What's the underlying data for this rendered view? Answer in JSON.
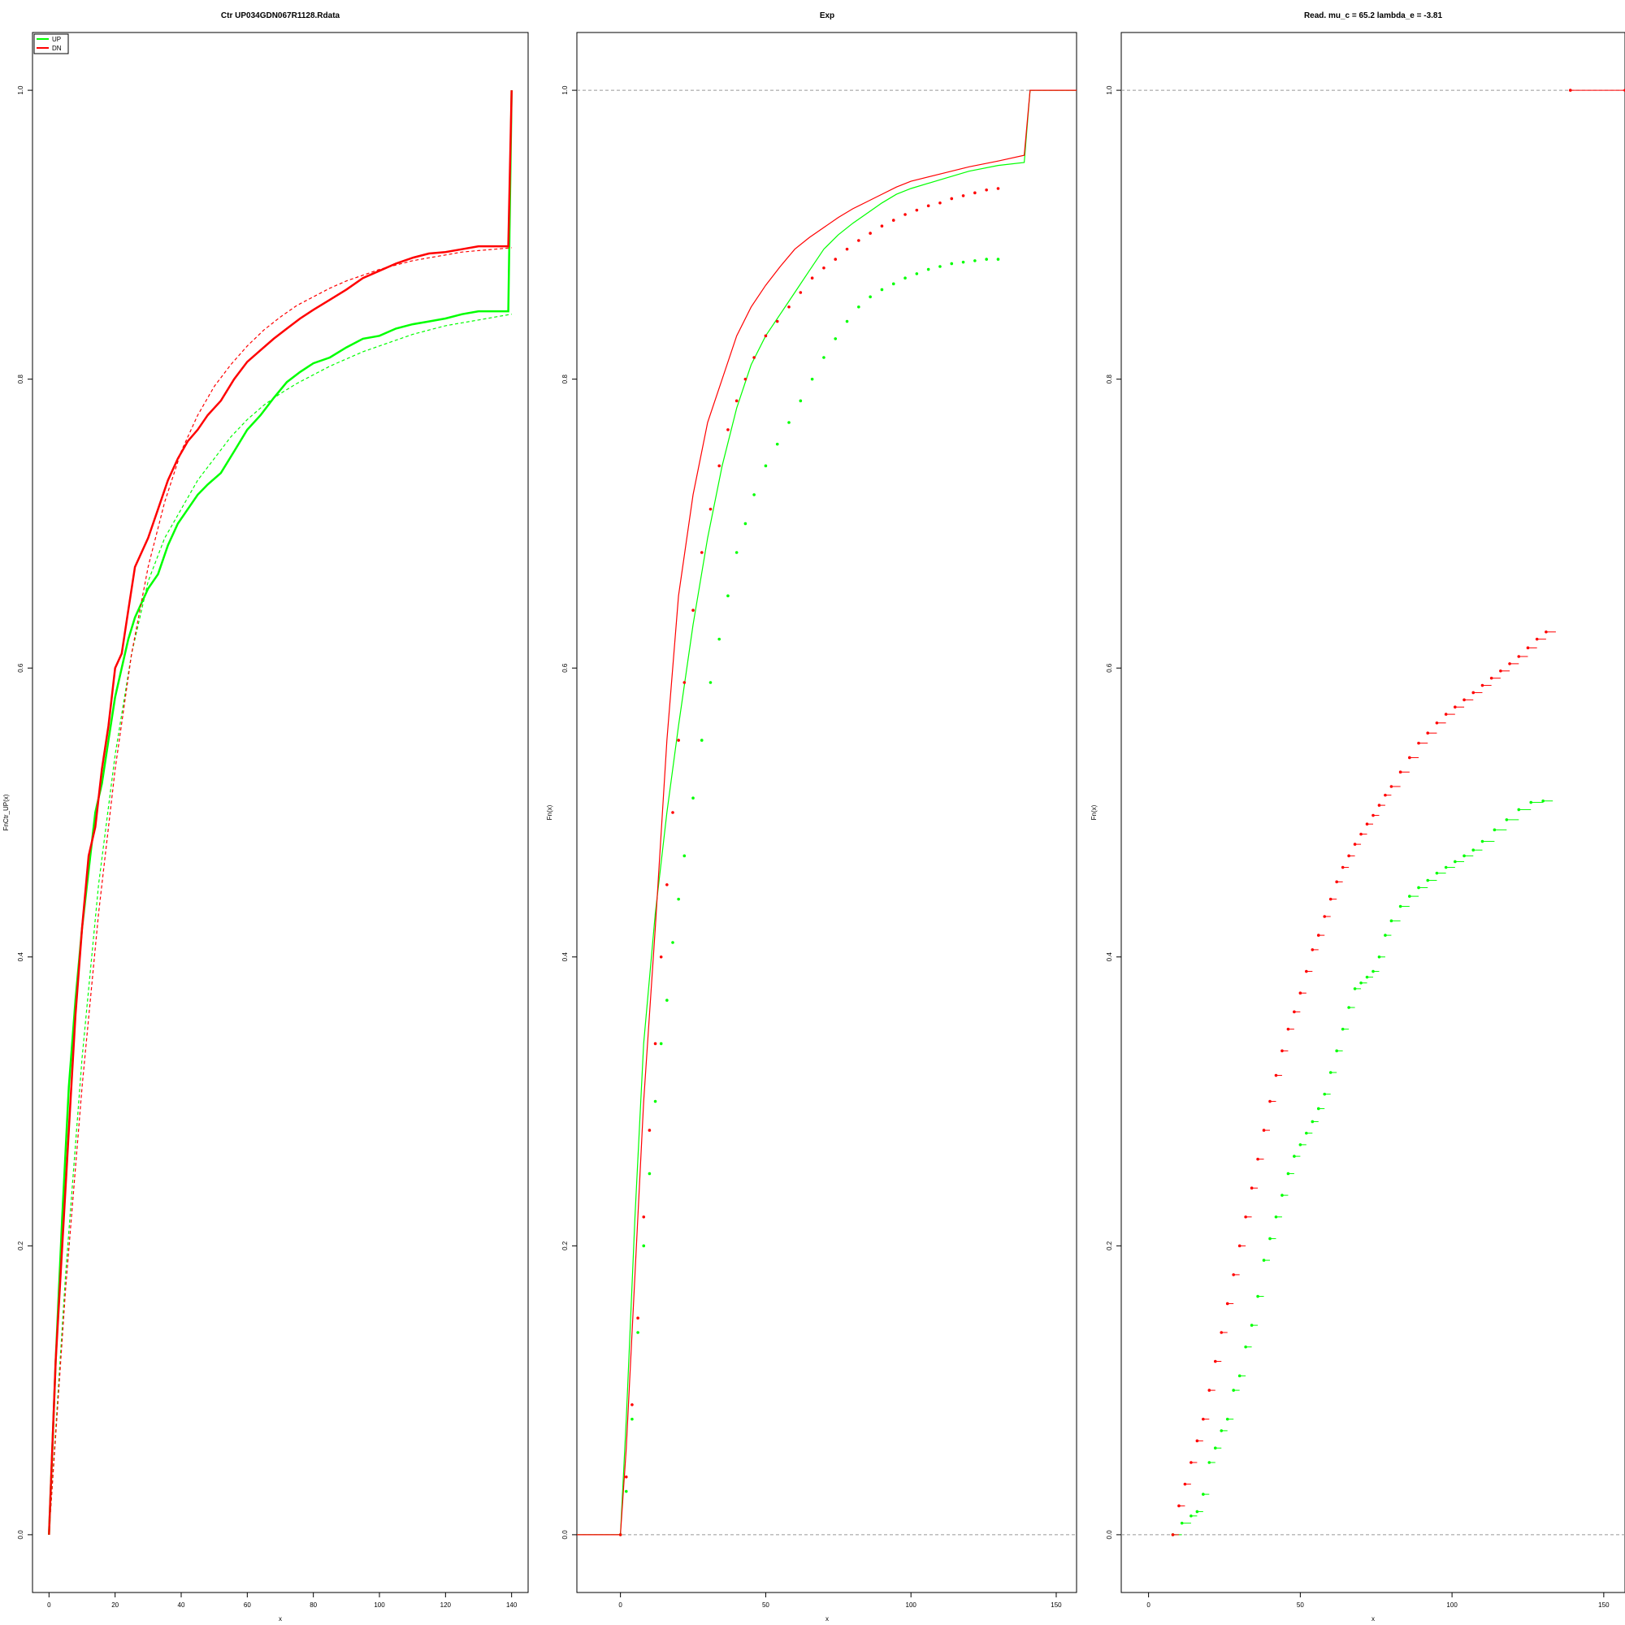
{
  "chart_data": [
    {
      "type": "line",
      "title": "Ctr UP034GDN067R1128.Rdata",
      "xlabel": "x",
      "ylabel": "FnCtr_UP(x)",
      "xlim": [
        -5,
        145
      ],
      "ylim": [
        -0.04,
        1.04
      ],
      "xticks": [
        "0",
        "20",
        "40",
        "60",
        "80",
        "100",
        "120",
        "140"
      ],
      "yticks": [
        "0.0",
        "0.2",
        "0.4",
        "0.6",
        "0.8",
        "1.0"
      ],
      "legend": {
        "position": "top-left",
        "entries": [
          "UP",
          "DN"
        ]
      },
      "colors": {
        "UP": "#00ff00",
        "DN": "#ff0000"
      },
      "series": [
        {
          "name": "UP",
          "style": "solid",
          "x": [
            0,
            2,
            4,
            6,
            8,
            10,
            12,
            14,
            16,
            18,
            20,
            22,
            24,
            26,
            28,
            30,
            33,
            36,
            39,
            42,
            45,
            48,
            52,
            56,
            60,
            64,
            68,
            72,
            76,
            80,
            85,
            90,
            95,
            100,
            105,
            110,
            115,
            120,
            125,
            130,
            135,
            139,
            140
          ],
          "y": [
            0,
            0.12,
            0.22,
            0.31,
            0.37,
            0.42,
            0.46,
            0.5,
            0.52,
            0.55,
            0.58,
            0.6,
            0.62,
            0.635,
            0.645,
            0.655,
            0.665,
            0.685,
            0.7,
            0.71,
            0.72,
            0.727,
            0.735,
            0.75,
            0.765,
            0.775,
            0.787,
            0.798,
            0.805,
            0.811,
            0.815,
            0.822,
            0.828,
            0.83,
            0.835,
            0.838,
            0.84,
            0.842,
            0.845,
            0.847,
            0.847,
            0.847,
            1.0
          ]
        },
        {
          "name": "DN",
          "style": "solid",
          "x": [
            0,
            2,
            4,
            6,
            8,
            10,
            12,
            14,
            16,
            18,
            20,
            22,
            24,
            26,
            28,
            30,
            33,
            36,
            39,
            42,
            45,
            48,
            52,
            56,
            60,
            64,
            68,
            72,
            76,
            80,
            85,
            90,
            95,
            100,
            105,
            110,
            115,
            120,
            125,
            130,
            135,
            139,
            140
          ],
          "y": [
            0,
            0.12,
            0.2,
            0.28,
            0.36,
            0.42,
            0.47,
            0.49,
            0.53,
            0.56,
            0.6,
            0.61,
            0.64,
            0.67,
            0.68,
            0.69,
            0.71,
            0.73,
            0.745,
            0.757,
            0.765,
            0.775,
            0.785,
            0.8,
            0.812,
            0.82,
            0.828,
            0.835,
            0.842,
            0.848,
            0.855,
            0.862,
            0.87,
            0.875,
            0.88,
            0.884,
            0.887,
            0.888,
            0.89,
            0.892,
            0.892,
            0.892,
            1.0
          ]
        },
        {
          "name": "",
          "style": "dashed",
          "color_of": "UP",
          "x": [
            0,
            5,
            10,
            15,
            20,
            25,
            30,
            35,
            40,
            45,
            50,
            55,
            60,
            65,
            70,
            75,
            80,
            85,
            90,
            95,
            100,
            105,
            110,
            115,
            120,
            125,
            130,
            135,
            140
          ],
          "y": [
            0,
            0.18,
            0.33,
            0.45,
            0.54,
            0.61,
            0.66,
            0.69,
            0.71,
            0.73,
            0.745,
            0.76,
            0.772,
            0.782,
            0.79,
            0.797,
            0.803,
            0.809,
            0.814,
            0.819,
            0.823,
            0.827,
            0.831,
            0.834,
            0.837,
            0.839,
            0.841,
            0.843,
            0.845
          ]
        },
        {
          "name": "",
          "style": "dashed",
          "color_of": "DN",
          "x": [
            0,
            5,
            10,
            15,
            20,
            25,
            30,
            35,
            40,
            45,
            50,
            55,
            60,
            65,
            70,
            75,
            80,
            85,
            90,
            95,
            100,
            105,
            110,
            115,
            120,
            125,
            130,
            135,
            140
          ],
          "y": [
            0,
            0.17,
            0.31,
            0.43,
            0.53,
            0.61,
            0.67,
            0.715,
            0.75,
            0.775,
            0.795,
            0.81,
            0.823,
            0.834,
            0.843,
            0.851,
            0.857,
            0.863,
            0.868,
            0.872,
            0.876,
            0.879,
            0.882,
            0.884,
            0.886,
            0.888,
            0.889,
            0.89,
            0.891
          ]
        }
      ]
    },
    {
      "type": "line",
      "title": "Exp",
      "xlabel": "x",
      "ylabel": "Fn(x)",
      "xlim": [
        -15,
        157
      ],
      "ylim": [
        -0.04,
        1.04
      ],
      "xticks": [
        "0",
        "50",
        "100",
        "150"
      ],
      "yticks": [
        "0.0",
        "0.2",
        "0.4",
        "0.6",
        "0.8",
        "1.0"
      ],
      "hlines": [
        0,
        1
      ],
      "colors": {
        "green": "#00ff00",
        "red": "#ff0000"
      },
      "series": [
        {
          "name": "",
          "style": "line",
          "color_of": "green",
          "x": [
            -15,
            0,
            2,
            5,
            8,
            12,
            16,
            20,
            25,
            30,
            35,
            40,
            45,
            50,
            55,
            60,
            65,
            70,
            75,
            80,
            85,
            90,
            95,
            100,
            110,
            120,
            130,
            139,
            141,
            157
          ],
          "y": [
            0,
            0,
            0.08,
            0.22,
            0.34,
            0.43,
            0.5,
            0.56,
            0.63,
            0.69,
            0.74,
            0.78,
            0.81,
            0.83,
            0.845,
            0.86,
            0.875,
            0.89,
            0.9,
            0.908,
            0.915,
            0.922,
            0.928,
            0.932,
            0.938,
            0.944,
            0.948,
            0.95,
            1.0,
            1.0
          ]
        },
        {
          "name": "",
          "style": "line",
          "color_of": "red",
          "x": [
            -15,
            0,
            2,
            5,
            8,
            12,
            16,
            20,
            25,
            30,
            35,
            40,
            45,
            50,
            55,
            60,
            65,
            70,
            75,
            80,
            85,
            90,
            95,
            100,
            110,
            120,
            130,
            139,
            141,
            157
          ],
          "y": [
            0,
            0,
            0.06,
            0.18,
            0.3,
            0.42,
            0.55,
            0.65,
            0.72,
            0.77,
            0.8,
            0.83,
            0.85,
            0.865,
            0.878,
            0.89,
            0.898,
            0.905,
            0.912,
            0.918,
            0.923,
            0.928,
            0.933,
            0.937,
            0.942,
            0.947,
            0.951,
            0.955,
            1.0,
            1.0
          ]
        },
        {
          "name": "",
          "style": "points",
          "color_of": "green",
          "x": [
            0,
            2,
            4,
            6,
            8,
            10,
            12,
            14,
            16,
            18,
            20,
            22,
            25,
            28,
            31,
            34,
            37,
            40,
            43,
            46,
            50,
            54,
            58,
            62,
            66,
            70,
            74,
            78,
            82,
            86,
            90,
            94,
            98,
            102,
            106,
            110,
            114,
            118,
            122,
            126,
            130
          ],
          "y": [
            0,
            0.03,
            0.08,
            0.14,
            0.2,
            0.25,
            0.3,
            0.34,
            0.37,
            0.41,
            0.44,
            0.47,
            0.51,
            0.55,
            0.59,
            0.62,
            0.65,
            0.68,
            0.7,
            0.72,
            0.74,
            0.755,
            0.77,
            0.785,
            0.8,
            0.815,
            0.828,
            0.84,
            0.85,
            0.857,
            0.862,
            0.866,
            0.87,
            0.873,
            0.876,
            0.878,
            0.88,
            0.881,
            0.882,
            0.883,
            0.883
          ]
        },
        {
          "name": "",
          "style": "points",
          "color_of": "red",
          "x": [
            0,
            2,
            4,
            6,
            8,
            10,
            12,
            14,
            16,
            18,
            20,
            22,
            25,
            28,
            31,
            34,
            37,
            40,
            43,
            46,
            50,
            54,
            58,
            62,
            66,
            70,
            74,
            78,
            82,
            86,
            90,
            94,
            98,
            102,
            106,
            110,
            114,
            118,
            122,
            126,
            130
          ],
          "y": [
            0,
            0.04,
            0.09,
            0.15,
            0.22,
            0.28,
            0.34,
            0.4,
            0.45,
            0.5,
            0.55,
            0.59,
            0.64,
            0.68,
            0.71,
            0.74,
            0.765,
            0.785,
            0.8,
            0.815,
            0.83,
            0.84,
            0.85,
            0.86,
            0.87,
            0.877,
            0.883,
            0.89,
            0.896,
            0.901,
            0.906,
            0.91,
            0.914,
            0.917,
            0.92,
            0.922,
            0.925,
            0.927,
            0.929,
            0.931,
            0.932
          ]
        }
      ]
    },
    {
      "type": "scatter",
      "title": "Read. mu_c =  65.2 lambda_e =  -3.81",
      "xlabel": "x",
      "ylabel": "Fn(x)",
      "xlim": [
        -9,
        157
      ],
      "ylim": [
        -0.04,
        1.04
      ],
      "xticks": [
        "0",
        "50",
        "100",
        "150"
      ],
      "yticks": [
        "0.0",
        "0.2",
        "0.4",
        "0.6",
        "0.8",
        "1.0"
      ],
      "hlines": [
        0,
        1
      ],
      "colors": {
        "green": "#00ff00",
        "red": "#ff0000"
      },
      "series": [
        {
          "name": "",
          "style": "steps",
          "color_of": "green",
          "x": [
            8,
            11,
            14,
            16,
            18,
            20,
            22,
            24,
            26,
            28,
            30,
            32,
            34,
            36,
            38,
            40,
            42,
            44,
            46,
            48,
            50,
            52,
            54,
            56,
            58,
            60,
            62,
            64,
            66,
            68,
            70,
            72,
            74,
            76,
            78,
            80,
            83,
            86,
            89,
            92,
            95,
            98,
            101,
            104,
            107,
            110,
            114,
            118,
            122,
            126,
            130
          ],
          "y": [
            0,
            0.008,
            0.013,
            0.016,
            0.028,
            0.05,
            0.06,
            0.072,
            0.08,
            0.1,
            0.11,
            0.13,
            0.145,
            0.165,
            0.19,
            0.205,
            0.22,
            0.235,
            0.25,
            0.262,
            0.27,
            0.278,
            0.286,
            0.295,
            0.305,
            0.32,
            0.335,
            0.35,
            0.365,
            0.378,
            0.382,
            0.386,
            0.39,
            0.4,
            0.415,
            0.425,
            0.435,
            0.442,
            0.448,
            0.453,
            0.458,
            0.462,
            0.466,
            0.47,
            0.474,
            0.48,
            0.488,
            0.495,
            0.502,
            0.507,
            0.508
          ]
        },
        {
          "name": "",
          "style": "steps",
          "color_of": "red",
          "x": [
            8,
            10,
            12,
            14,
            16,
            18,
            20,
            22,
            24,
            26,
            28,
            30,
            32,
            34,
            36,
            38,
            40,
            42,
            44,
            46,
            48,
            50,
            52,
            54,
            56,
            58,
            60,
            62,
            64,
            66,
            68,
            70,
            72,
            74,
            76,
            78,
            80,
            83,
            86,
            89,
            92,
            95,
            98,
            101,
            104,
            107,
            110,
            113,
            116,
            119,
            122,
            125,
            128,
            131
          ],
          "y": [
            0,
            0.02,
            0.035,
            0.05,
            0.065,
            0.08,
            0.1,
            0.12,
            0.14,
            0.16,
            0.18,
            0.2,
            0.22,
            0.24,
            0.26,
            0.28,
            0.3,
            0.318,
            0.335,
            0.35,
            0.362,
            0.375,
            0.39,
            0.405,
            0.415,
            0.428,
            0.44,
            0.452,
            0.462,
            0.47,
            0.478,
            0.485,
            0.492,
            0.498,
            0.505,
            0.512,
            0.518,
            0.528,
            0.538,
            0.548,
            0.555,
            0.562,
            0.568,
            0.573,
            0.578,
            0.583,
            0.588,
            0.593,
            0.598,
            0.603,
            0.608,
            0.614,
            0.62,
            0.625
          ]
        },
        {
          "name": "",
          "style": "steps",
          "color_of": "red",
          "x": [
            139,
            157
          ],
          "y": [
            1.0,
            1.0
          ]
        }
      ]
    }
  ]
}
